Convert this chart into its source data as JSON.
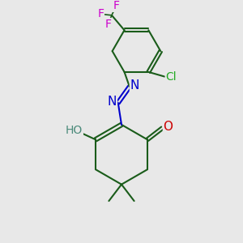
{
  "background_color": "#e8e8e8",
  "bond_color": "#1a5c1a",
  "atom_colors": {
    "O_carbonyl": "#cc0000",
    "O_hydroxyl": "#cc0000",
    "HO_color": "#4a8a7a",
    "N": "#0000cc",
    "Cl": "#22aa22",
    "F": "#cc00cc",
    "C": "#1a5c1a"
  },
  "figsize": [
    3.0,
    3.0
  ],
  "dpi": 100
}
